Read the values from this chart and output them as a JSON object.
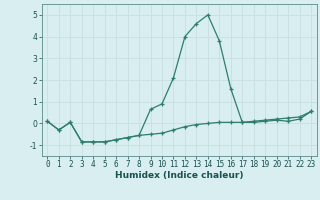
{
  "xlabel": "Humidex (Indice chaleur)",
  "x": [
    0,
    1,
    2,
    3,
    4,
    5,
    6,
    7,
    8,
    9,
    10,
    11,
    12,
    13,
    14,
    15,
    16,
    17,
    18,
    19,
    20,
    21,
    22,
    23
  ],
  "line1": [
    0.1,
    -0.3,
    0.05,
    -0.85,
    -0.85,
    -0.85,
    -0.75,
    -0.65,
    -0.55,
    0.65,
    0.9,
    2.1,
    4.0,
    4.6,
    5.0,
    3.8,
    1.6,
    0.05,
    0.05,
    0.1,
    0.15,
    0.1,
    0.2,
    0.55
  ],
  "line2": [
    0.1,
    -0.3,
    0.05,
    -0.85,
    -0.85,
    -0.85,
    -0.75,
    -0.65,
    -0.55,
    -0.5,
    -0.45,
    -0.3,
    -0.15,
    -0.05,
    0.0,
    0.05,
    0.05,
    0.05,
    0.1,
    0.15,
    0.2,
    0.25,
    0.3,
    0.55
  ],
  "line_color": "#2e7d6e",
  "bg_color": "#d8eef0",
  "grid_color": "#c8dfe2",
  "ylim": [
    -1.5,
    5.5
  ],
  "yticks": [
    -1,
    0,
    1,
    2,
    3,
    4,
    5
  ],
  "xticks": [
    0,
    1,
    2,
    3,
    4,
    5,
    6,
    7,
    8,
    9,
    10,
    11,
    12,
    13,
    14,
    15,
    16,
    17,
    18,
    19,
    20,
    21,
    22,
    23
  ],
  "xlabel_fontsize": 6.5,
  "tick_fontsize": 5.5,
  "tick_color": "#1a5050"
}
